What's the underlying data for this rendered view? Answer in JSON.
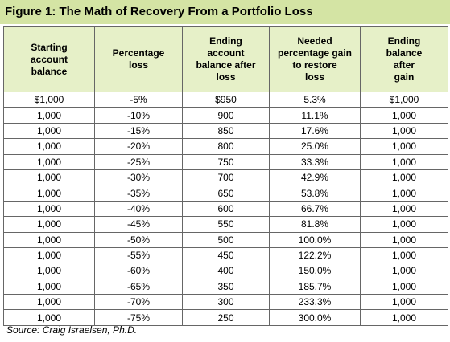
{
  "title": "Figure 1: The Math of Recovery From a Portfolio Loss",
  "table": {
    "header": [
      [
        "Starting",
        "account",
        "balance"
      ],
      [
        "Percentage",
        "loss"
      ],
      [
        "Ending",
        "account",
        "balance after",
        "loss"
      ],
      [
        "Needed",
        "percentage gain",
        "to restore",
        "loss"
      ],
      [
        "Ending",
        "balance",
        "after",
        "gain"
      ]
    ],
    "rows": [
      [
        "$1,000",
        "-5%",
        "$950",
        "5.3%",
        "$1,000"
      ],
      [
        "1,000",
        "-10%",
        "900",
        "11.1%",
        "1,000"
      ],
      [
        "1,000",
        "-15%",
        "850",
        "17.6%",
        "1,000"
      ],
      [
        "1,000",
        "-20%",
        "800",
        "25.0%",
        "1,000"
      ],
      [
        "1,000",
        "-25%",
        "750",
        "33.3%",
        "1,000"
      ],
      [
        "1,000",
        "-30%",
        "700",
        "42.9%",
        "1,000"
      ],
      [
        "1,000",
        "-35%",
        "650",
        "53.8%",
        "1,000"
      ],
      [
        "1,000",
        "-40%",
        "600",
        "66.7%",
        "1,000"
      ],
      [
        "1,000",
        "-45%",
        "550",
        "81.8%",
        "1,000"
      ],
      [
        "1,000",
        "-50%",
        "500",
        "100.0%",
        "1,000"
      ],
      [
        "1,000",
        "-55%",
        "450",
        "122.2%",
        "1,000"
      ],
      [
        "1,000",
        "-60%",
        "400",
        "150.0%",
        "1,000"
      ],
      [
        "1,000",
        "-65%",
        "350",
        "185.7%",
        "1,000"
      ],
      [
        "1,000",
        "-70%",
        "300",
        "233.3%",
        "1,000"
      ],
      [
        "1,000",
        "-75%",
        "250",
        "300.0%",
        "1,000"
      ]
    ]
  },
  "source": "Source: Craig Israelsen, Ph.D."
}
